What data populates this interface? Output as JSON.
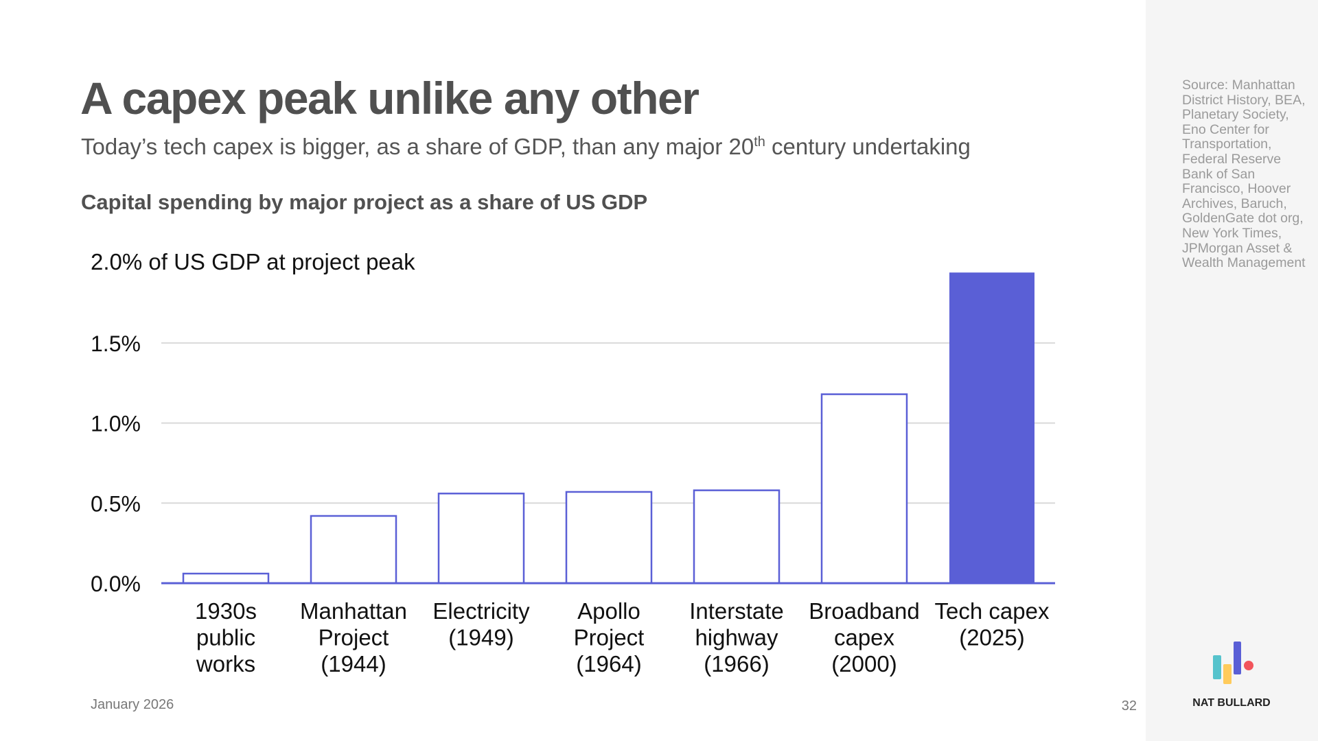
{
  "slide": {
    "title": "A capex peak unlike any other",
    "subtitle_pre": "Today’s tech capex is bigger, as a share of GDP, than any major 20",
    "subtitle_sup": "th",
    "subtitle_post": " century undertaking",
    "chart_heading": "Capital spending by major project as a share of US GDP",
    "source": "Source: Manhattan District History, BEA, Planetary Society, Eno Center for Transportation, Federal Reserve Bank of San Francisco, Hoover Archives, Baruch, GoldenGate dot org, New York Times, JPMorgan Asset & Wealth Management",
    "date": "January 2026",
    "page_number": "32",
    "brand": "NAT BULLARD"
  },
  "colors": {
    "accent": "#5a5fd6",
    "gridline": "#d9d9d9",
    "title": "#505050",
    "logo": [
      "#56c3cc",
      "#ffcb5c",
      "#5a5fd6",
      "#f2545b"
    ]
  },
  "chart_data": {
    "type": "bar",
    "ylabel": "2.0% of US GDP at project peak",
    "ylim": [
      0,
      2.0
    ],
    "yticks": [
      "0.0%",
      "0.5%",
      "1.0%",
      "1.5%"
    ],
    "ytick_values": [
      0,
      0.5,
      1.0,
      1.5
    ],
    "grid": true,
    "categories": [
      [
        "1930s",
        "public",
        "works"
      ],
      [
        "Manhattan",
        "Project",
        "(1944)"
      ],
      [
        "Electricity",
        "(1949)"
      ],
      [
        "Apollo",
        "Project",
        "(1964)"
      ],
      [
        "Interstate",
        "highway",
        "(1966)"
      ],
      [
        "Broadband",
        "capex",
        "(2000)"
      ],
      [
        "Tech capex",
        "(2025)"
      ]
    ],
    "values": [
      0.06,
      0.42,
      0.56,
      0.57,
      0.58,
      1.18,
      1.94
    ],
    "highlighted": [
      false,
      false,
      false,
      false,
      false,
      false,
      true
    ]
  }
}
